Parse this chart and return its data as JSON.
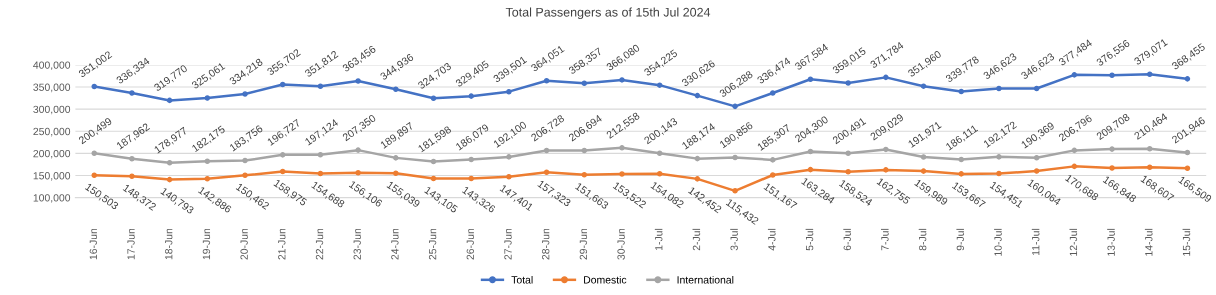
{
  "chart_data": {
    "type": "line",
    "title": "Total Passengers as of 15th Jul 2024",
    "categories": [
      "16-Jun",
      "17-Jun",
      "18-Jun",
      "19-Jun",
      "20-Jun",
      "21-Jun",
      "22-Jun",
      "23-Jun",
      "24-Jun",
      "25-Jun",
      "26-Jun",
      "27-Jun",
      "28-Jun",
      "29-Jun",
      "30-Jun",
      "1-Jul",
      "2-Jul",
      "3-Jul",
      "4-Jul",
      "5-Jul",
      "6-Jul",
      "7-Jul",
      "8-Jul",
      "9-Jul",
      "10-Jul",
      "11-Jul",
      "12-Jul",
      "13-Jul",
      "14-Jul",
      "15-Jul"
    ],
    "series": [
      {
        "name": "Total",
        "color": "#4472c4",
        "values": [
          351002,
          336334,
          319770,
          325061,
          334218,
          355702,
          351812,
          363456,
          344936,
          324703,
          329405,
          339501,
          364051,
          358357,
          366080,
          354225,
          330626,
          306288,
          336474,
          367584,
          359015,
          371784,
          351960,
          339778,
          346623,
          346623,
          377484,
          376556,
          379071,
          368455
        ],
        "value_labels": [
          "351,002",
          "336,334",
          "319,770",
          "325,061",
          "334,218",
          "355,702",
          "351,812",
          "363,456",
          "344,936",
          "324,703",
          "329,405",
          "339,501",
          "364,051",
          "358,357",
          "366,080",
          "354,225",
          "330,626",
          "306,288",
          "336,474",
          "367,584",
          "359,015",
          "371,784",
          "351,960",
          "339,778",
          "346,623",
          "346,623",
          "377,484",
          "376,556",
          "379,071",
          "368,455"
        ]
      },
      {
        "name": "Domestic",
        "color": "#ed7d31",
        "values": [
          150503,
          148372,
          140793,
          142886,
          150462,
          158975,
          154688,
          156106,
          155039,
          143105,
          143326,
          147401,
          157323,
          151663,
          153522,
          154082,
          142452,
          115432,
          151167,
          163284,
          158524,
          162755,
          159989,
          153667,
          154451,
          160064,
          170688,
          166848,
          168607,
          166509
        ],
        "value_labels": [
          "150,503",
          "148,372",
          "140,793",
          "142,886",
          "150,462",
          "158,975",
          "154,688",
          "156,106",
          "155,039",
          "143,105",
          "143,326",
          "147,401",
          "157,323",
          "151,663",
          "153,522",
          "154,082",
          "142,452",
          "115,432",
          "151,167",
          "163,284",
          "158,524",
          "162,755",
          "159,989",
          "153,667",
          "154,451",
          "160,064",
          "170,688",
          "166,848",
          "168,607",
          "166,509"
        ]
      },
      {
        "name": "International",
        "color": "#a5a5a5",
        "values": [
          200499,
          187962,
          178977,
          182175,
          183756,
          196727,
          197124,
          207350,
          189897,
          181598,
          186079,
          192100,
          206728,
          206694,
          212558,
          200143,
          188174,
          190856,
          185307,
          204300,
          200491,
          209029,
          191971,
          186111,
          192172,
          190369,
          206796,
          209708,
          210464,
          201946
        ],
        "value_labels": [
          "200,499",
          "187,962",
          "178,977",
          "182,175",
          "183,756",
          "196,727",
          "197,124",
          "207,350",
          "189,897",
          "181,598",
          "186,079",
          "192,100",
          "206,728",
          "206,694",
          "212,558",
          "200,143",
          "188,174",
          "190,856",
          "185,307",
          "204,300",
          "200,491",
          "209,029",
          "191,971",
          "186,111",
          "192,172",
          "190,369",
          "206,796",
          "209,708",
          "210,464",
          "201,946"
        ]
      }
    ],
    "ylim": [
      100000,
      400000
    ],
    "yticks": [
      {
        "value": 100000,
        "label": "100,000"
      },
      {
        "value": 150000,
        "label": "150,000"
      },
      {
        "value": 200000,
        "label": "200,000"
      },
      {
        "value": 250000,
        "label": "250,000"
      },
      {
        "value": 300000,
        "label": "300,000"
      },
      {
        "value": 350000,
        "label": "350,000"
      },
      {
        "value": 400000,
        "label": "400,000"
      }
    ],
    "grid": "y",
    "legend": "bottom",
    "marker": "circle",
    "line_style": "solid"
  }
}
